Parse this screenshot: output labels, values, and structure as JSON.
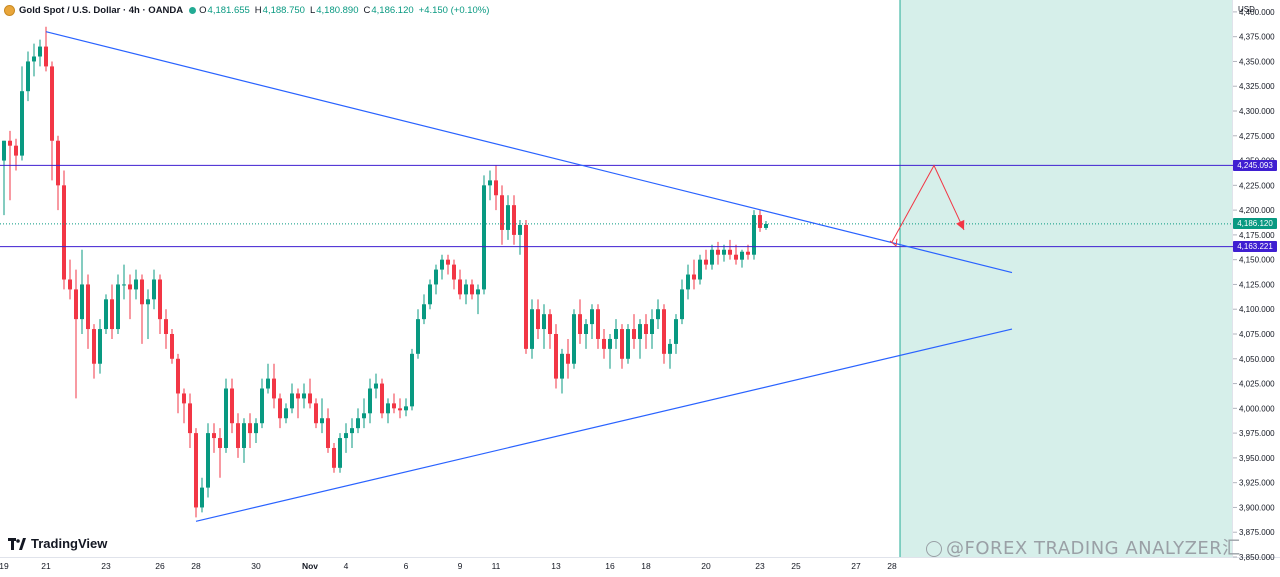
{
  "header": {
    "title": "Gold Spot / U.S. Dollar · 4h · OANDA",
    "o_label": "O",
    "o_value": "4,181.655",
    "h_label": "H",
    "h_value": "4,188.750",
    "l_label": "L",
    "l_value": "4,180.890",
    "c_label": "C",
    "c_value": "4,186.120",
    "change": "+4.150 (+0.10%)"
  },
  "branding": {
    "logo_text": "TradingView",
    "watermark": "@FOREX TRADING ANALYZER汇"
  },
  "colors": {
    "up": "#089981",
    "down": "#f23645",
    "trend_line": "#2962ff",
    "level_line": "#3f1fd1",
    "projection_zone": "#d6efea",
    "arrow": "#f23645"
  },
  "chart_data": {
    "type": "candlestick",
    "symbol": "XAUUSD",
    "timeframe": "4h",
    "currency_label": "USD",
    "y_ticks": [
      "4,400.000",
      "4,375.000",
      "4,350.000",
      "4,325.000",
      "4,300.000",
      "4,275.000",
      "4,250.000",
      "4,225.000",
      "4,200.000",
      "4,175.000",
      "4,150.000",
      "4,125.000",
      "4,100.000",
      "4,075.000",
      "4,050.000",
      "4,025.000",
      "4,000.000",
      "3,975.000",
      "3,950.000",
      "3,925.000",
      "3,900.000",
      "3,875.000",
      "3,850.000"
    ],
    "ylim": [
      3850,
      4412
    ],
    "x_ticks": [
      {
        "label": "19",
        "bar": 0
      },
      {
        "label": "21",
        "bar": 7
      },
      {
        "label": "23",
        "bar": 17
      },
      {
        "label": "26",
        "bar": 26
      },
      {
        "label": "28",
        "bar": 32
      },
      {
        "label": "30",
        "bar": 42
      },
      {
        "label": "Nov",
        "bar": 51
      },
      {
        "label": "4",
        "bar": 57
      },
      {
        "label": "6",
        "bar": 67
      },
      {
        "label": "9",
        "bar": 76
      },
      {
        "label": "11",
        "bar": 82
      },
      {
        "label": "13",
        "bar": 92
      },
      {
        "label": "16",
        "bar": 101
      },
      {
        "label": "18",
        "bar": 107
      },
      {
        "label": "20",
        "bar": 117
      },
      {
        "label": "23",
        "bar": 126
      },
      {
        "label": "25",
        "bar": 132
      },
      {
        "label": "27",
        "bar": 142
      },
      {
        "label": "28",
        "bar": 148
      }
    ],
    "candles": [
      [
        4250,
        4270,
        4195,
        4270
      ],
      [
        4270,
        4280,
        4210,
        4265
      ],
      [
        4265,
        4272,
        4240,
        4255
      ],
      [
        4255,
        4345,
        4250,
        4320
      ],
      [
        4320,
        4360,
        4310,
        4350
      ],
      [
        4350,
        4368,
        4335,
        4355
      ],
      [
        4355,
        4372,
        4345,
        4365
      ],
      [
        4365,
        4385,
        4340,
        4345
      ],
      [
        4345,
        4350,
        4230,
        4270
      ],
      [
        4270,
        4275,
        4200,
        4225
      ],
      [
        4225,
        4240,
        4120,
        4130
      ],
      [
        4130,
        4150,
        4110,
        4120
      ],
      [
        4120,
        4140,
        4010,
        4090
      ],
      [
        4090,
        4160,
        4075,
        4125
      ],
      [
        4125,
        4135,
        4060,
        4080
      ],
      [
        4080,
        4085,
        4030,
        4045
      ],
      [
        4045,
        4090,
        4035,
        4080
      ],
      [
        4080,
        4115,
        4075,
        4110
      ],
      [
        4110,
        4125,
        4070,
        4080
      ],
      [
        4080,
        4135,
        4075,
        4125
      ],
      [
        4125,
        4145,
        4110,
        4125
      ],
      [
        4125,
        4135,
        4090,
        4120
      ],
      [
        4120,
        4140,
        4110,
        4130
      ],
      [
        4130,
        4135,
        4065,
        4105
      ],
      [
        4105,
        4120,
        4070,
        4110
      ],
      [
        4110,
        4140,
        4100,
        4130
      ],
      [
        4130,
        4135,
        4075,
        4090
      ],
      [
        4090,
        4100,
        4060,
        4075
      ],
      [
        4075,
        4080,
        4045,
        4050
      ],
      [
        4050,
        4055,
        3995,
        4015
      ],
      [
        4015,
        4020,
        3985,
        4005
      ],
      [
        4005,
        4015,
        3960,
        3975
      ],
      [
        3975,
        3980,
        3890,
        3900
      ],
      [
        3900,
        3930,
        3895,
        3920
      ],
      [
        3920,
        3985,
        3910,
        3975
      ],
      [
        3975,
        3985,
        3955,
        3970
      ],
      [
        3970,
        3980,
        3930,
        3960
      ],
      [
        3960,
        4030,
        3955,
        4020
      ],
      [
        4020,
        4030,
        3975,
        3985
      ],
      [
        3985,
        3995,
        3950,
        3960
      ],
      [
        3960,
        3990,
        3945,
        3985
      ],
      [
        3985,
        3995,
        3960,
        3975
      ],
      [
        3975,
        3990,
        3965,
        3985
      ],
      [
        3985,
        4030,
        3980,
        4020
      ],
      [
        4020,
        4045,
        4015,
        4030
      ],
      [
        4030,
        4045,
        4000,
        4010
      ],
      [
        4010,
        4015,
        3980,
        3990
      ],
      [
        3990,
        4005,
        3985,
        4000
      ],
      [
        4000,
        4025,
        3995,
        4015
      ],
      [
        4015,
        4020,
        3990,
        4010
      ],
      [
        4010,
        4025,
        4000,
        4015
      ],
      [
        4015,
        4030,
        4000,
        4005
      ],
      [
        4005,
        4010,
        3980,
        3985
      ],
      [
        3985,
        4010,
        3975,
        3990
      ],
      [
        3990,
        4000,
        3955,
        3960
      ],
      [
        3960,
        3965,
        3935,
        3940
      ],
      [
        3940,
        3975,
        3935,
        3970
      ],
      [
        3970,
        3985,
        3955,
        3975
      ],
      [
        3975,
        3990,
        3960,
        3980
      ],
      [
        3980,
        4000,
        3975,
        3990
      ],
      [
        3990,
        4010,
        3980,
        3995
      ],
      [
        3995,
        4030,
        3985,
        4020
      ],
      [
        4020,
        4035,
        4010,
        4025
      ],
      [
        4025,
        4030,
        3990,
        3995
      ],
      [
        3995,
        4010,
        3985,
        4005
      ],
      [
        4005,
        4015,
        3995,
        4000
      ],
      [
        4000,
        4010,
        3990,
        3998
      ],
      [
        3998,
        4010,
        3992,
        4002
      ],
      [
        4002,
        4060,
        3998,
        4055
      ],
      [
        4055,
        4100,
        4050,
        4090
      ],
      [
        4090,
        4115,
        4085,
        4105
      ],
      [
        4105,
        4130,
        4100,
        4125
      ],
      [
        4125,
        4145,
        4115,
        4140
      ],
      [
        4140,
        4155,
        4130,
        4150
      ],
      [
        4150,
        4155,
        4135,
        4145
      ],
      [
        4145,
        4150,
        4120,
        4130
      ],
      [
        4130,
        4140,
        4110,
        4115
      ],
      [
        4115,
        4130,
        4105,
        4125
      ],
      [
        4125,
        4130,
        4110,
        4115
      ],
      [
        4115,
        4125,
        4095,
        4120
      ],
      [
        4120,
        4235,
        4115,
        4225
      ],
      [
        4225,
        4240,
        4210,
        4230
      ],
      [
        4230,
        4245,
        4200,
        4215
      ],
      [
        4215,
        4225,
        4165,
        4180
      ],
      [
        4180,
        4215,
        4170,
        4205
      ],
      [
        4205,
        4215,
        4165,
        4175
      ],
      [
        4175,
        4190,
        4155,
        4185
      ],
      [
        4185,
        4190,
        4055,
        4060
      ],
      [
        4060,
        4110,
        4050,
        4100
      ],
      [
        4100,
        4110,
        4070,
        4080
      ],
      [
        4080,
        4105,
        4060,
        4095
      ],
      [
        4095,
        4100,
        4060,
        4075
      ],
      [
        4075,
        4085,
        4020,
        4030
      ],
      [
        4030,
        4060,
        4015,
        4055
      ],
      [
        4055,
        4070,
        4030,
        4045
      ],
      [
        4045,
        4100,
        4040,
        4095
      ],
      [
        4095,
        4110,
        4065,
        4075
      ],
      [
        4075,
        4090,
        4060,
        4085
      ],
      [
        4085,
        4105,
        4070,
        4100
      ],
      [
        4100,
        4105,
        4060,
        4070
      ],
      [
        4070,
        4080,
        4050,
        4060
      ],
      [
        4060,
        4075,
        4040,
        4070
      ],
      [
        4070,
        4090,
        4060,
        4080
      ],
      [
        4080,
        4085,
        4040,
        4050
      ],
      [
        4050,
        4085,
        4045,
        4080
      ],
      [
        4080,
        4095,
        4060,
        4070
      ],
      [
        4070,
        4090,
        4050,
        4085
      ],
      [
        4085,
        4095,
        4060,
        4075
      ],
      [
        4075,
        4100,
        4060,
        4090
      ],
      [
        4090,
        4110,
        4080,
        4100
      ],
      [
        4100,
        4105,
        4045,
        4055
      ],
      [
        4055,
        4070,
        4040,
        4065
      ],
      [
        4065,
        4095,
        4055,
        4090
      ],
      [
        4090,
        4130,
        4085,
        4120
      ],
      [
        4120,
        4145,
        4110,
        4135
      ],
      [
        4135,
        4150,
        4120,
        4130
      ],
      [
        4130,
        4155,
        4125,
        4150
      ],
      [
        4150,
        4160,
        4140,
        4145
      ],
      [
        4145,
        4165,
        4140,
        4160
      ],
      [
        4160,
        4168,
        4145,
        4155
      ],
      [
        4155,
        4165,
        4148,
        4160
      ],
      [
        4160,
        4170,
        4150,
        4155
      ],
      [
        4155,
        4165,
        4145,
        4150
      ],
      [
        4150,
        4160,
        4142,
        4158
      ],
      [
        4158,
        4165,
        4150,
        4155
      ],
      [
        4155,
        4200,
        4150,
        4195
      ],
      [
        4195,
        4200,
        4178,
        4182
      ],
      [
        4182,
        4189,
        4180,
        4186
      ]
    ],
    "levels": [
      {
        "label": "4,245.093",
        "value": 4245.093
      },
      {
        "label": "4,163.221",
        "value": 4163.221
      }
    ],
    "current_price": {
      "label": "4,186.120",
      "value": 4186.12
    },
    "trendlines": [
      {
        "name": "descending",
        "from": {
          "bar": 7,
          "price": 4380
        },
        "to": {
          "bar": 168,
          "price": 4137
        }
      },
      {
        "name": "ascending",
        "from": {
          "bar": 32,
          "price": 3886
        },
        "to": {
          "bar": 168,
          "price": 4080
        }
      }
    ],
    "projection": [
      {
        "bar": 148,
        "price": 4168
      },
      {
        "bar": 155,
        "price": 4245
      },
      {
        "bar": 160,
        "price": 4180
      }
    ],
    "grid": false
  }
}
